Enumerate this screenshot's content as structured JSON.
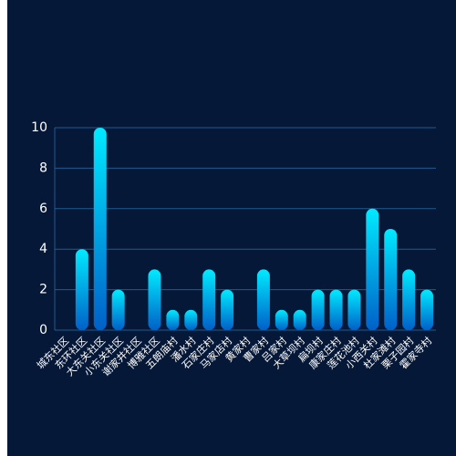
{
  "chart_data": {
    "type": "bar",
    "categories": [
      "城东社区",
      "东环社区",
      "大东关社区",
      "小东关社区",
      "谢家井社区",
      "博雅社区",
      "五朗庙村",
      "潘水村",
      "石家庄村",
      "马家店村",
      "黄家村",
      "曹家村",
      "吕家村",
      "大草坝村",
      "扁坝村",
      "康家庄村",
      "莲花池村",
      "小西关村",
      "杜家滩村",
      "栗子园村",
      "霍家寺村"
    ],
    "values": [
      0,
      4,
      10,
      2,
      0,
      3,
      1,
      1,
      3,
      2,
      0,
      3,
      1,
      1,
      2,
      2,
      2,
      6,
      5,
      3,
      2
    ],
    "colors": [
      "#00eaff",
      "#0060c8"
    ],
    "ylim": [
      0,
      10
    ],
    "yticks": [
      0,
      2,
      4,
      6,
      8,
      10
    ],
    "grid": true
  }
}
